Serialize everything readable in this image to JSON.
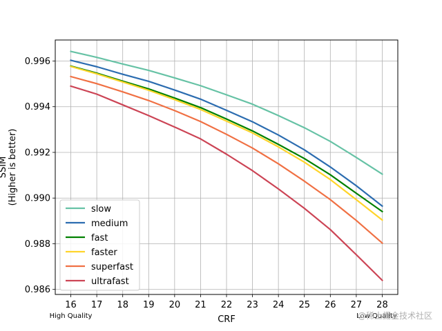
{
  "chart_data": {
    "type": "line",
    "title": "",
    "xlabel": "CRF",
    "ylabel_lines": [
      "SSIM",
      "(Higher is better)"
    ],
    "x": [
      16,
      17,
      18,
      19,
      20,
      21,
      22,
      23,
      24,
      25,
      26,
      27,
      28
    ],
    "xlim": [
      15.4,
      28.6
    ],
    "ylim": [
      0.98578,
      0.99692
    ],
    "yticks": [
      0.986,
      0.988,
      0.99,
      0.992,
      0.994,
      0.996
    ],
    "ytick_labels": [
      "0.986",
      "0.988",
      "0.990",
      "0.992",
      "0.994",
      "0.996"
    ],
    "grid": true,
    "legend_position": "lower-left",
    "x_note_left": "High Quality",
    "x_note_right": "Low Quality",
    "series": [
      {
        "name": "slow",
        "color": "#66c2a5",
        "values": [
          0.99642,
          0.99616,
          0.99587,
          0.99559,
          0.99526,
          0.99492,
          0.99452,
          0.99411,
          0.99361,
          0.99308,
          0.99248,
          0.99178,
          0.99105
        ]
      },
      {
        "name": "medium",
        "color": "#2b6cb0",
        "values": [
          0.99603,
          0.99575,
          0.99542,
          0.99511,
          0.99473,
          0.99433,
          0.99384,
          0.99334,
          0.99276,
          0.99211,
          0.99136,
          0.99054,
          0.98965
        ]
      },
      {
        "name": "fast",
        "color": "#008000",
        "values": [
          0.99578,
          0.99547,
          0.99512,
          0.99478,
          0.99438,
          0.99396,
          0.99346,
          0.99294,
          0.99235,
          0.99173,
          0.99102,
          0.99021,
          0.98941
        ]
      },
      {
        "name": "faster",
        "color": "#ffd42a",
        "values": [
          0.99576,
          0.99544,
          0.99508,
          0.99472,
          0.99431,
          0.99388,
          0.99337,
          0.99285,
          0.99224,
          0.99157,
          0.99081,
          0.98993,
          0.98904
        ]
      },
      {
        "name": "superfast",
        "color": "#f07043",
        "values": [
          0.99532,
          0.99501,
          0.99465,
          0.99427,
          0.99383,
          0.99335,
          0.99279,
          0.99219,
          0.9915,
          0.99074,
          0.98993,
          0.98902,
          0.98803
        ]
      },
      {
        "name": "ultrafast",
        "color": "#cc4455",
        "values": [
          0.9949,
          0.99455,
          0.99408,
          0.99361,
          0.99311,
          0.99259,
          0.99192,
          0.9912,
          0.9904,
          0.98955,
          0.98862,
          0.98752,
          0.9864
        ]
      }
    ]
  },
  "watermark": "@稀土掘金技术社区"
}
